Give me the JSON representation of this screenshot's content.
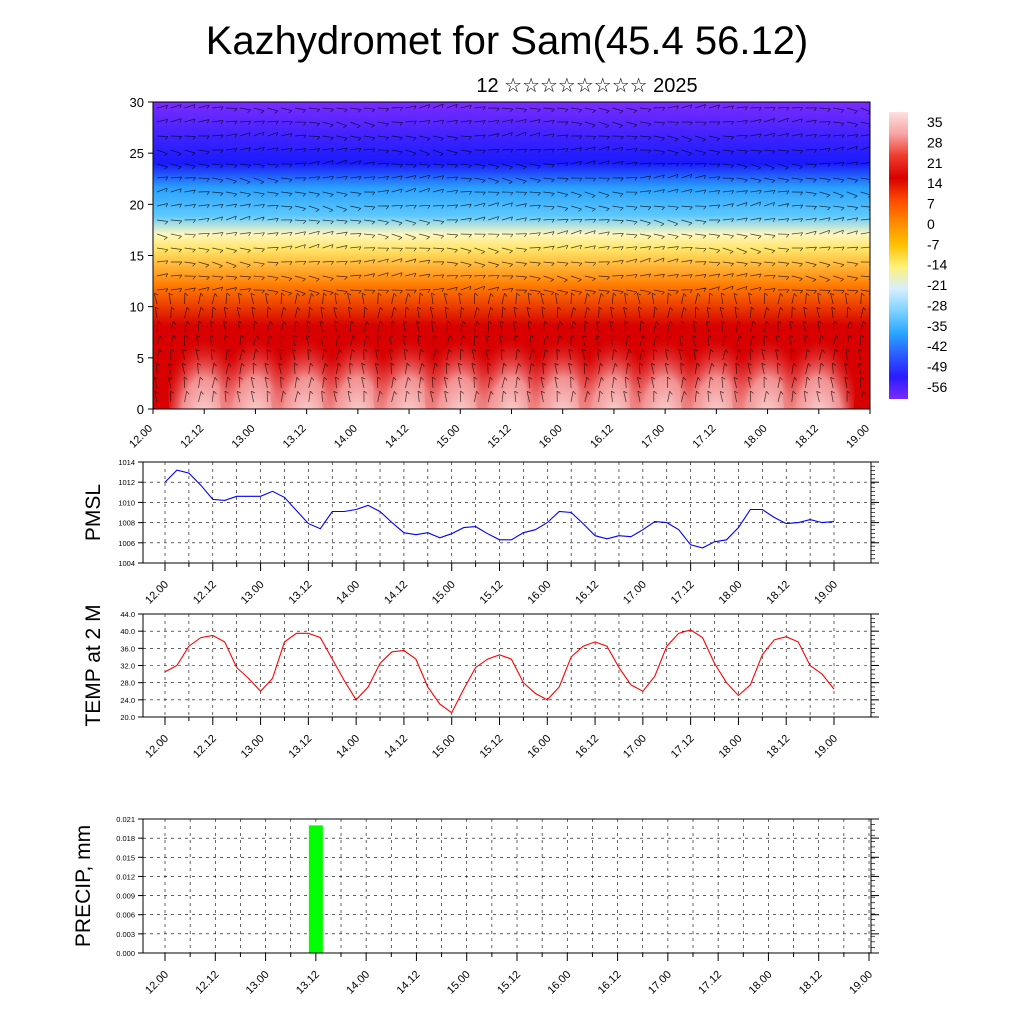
{
  "title": "Kazhydromet for Sam(45.4 56.12)",
  "subtitle": "12 ☆☆☆☆☆☆☆☆ 2025",
  "chart_data": [
    {
      "type": "heatmap",
      "name": "vertical-cross-section",
      "ylabel": "",
      "ylim": [
        0,
        30
      ],
      "yticks": [
        0,
        5,
        10,
        15,
        20,
        25,
        30
      ],
      "x_tick_labels": [
        "12.00",
        "12.12",
        "13.00",
        "13.12",
        "14.00",
        "14.12",
        "15.00",
        "15.12",
        "16.00",
        "16.12",
        "17.00",
        "17.12",
        "18.00",
        "18.12",
        "19.00"
      ],
      "colorbar": {
        "labels": [
          "35",
          "28",
          "21",
          "14",
          "7",
          "0",
          "-7",
          "-14",
          "-21",
          "-28",
          "-35",
          "-42",
          "-49",
          "-56"
        ],
        "colors": [
          "#fde0e0",
          "#f7a3a3",
          "#ee3b2b",
          "#d90000",
          "#ff4a00",
          "#ff8a00",
          "#ffc000",
          "#fff176",
          "#d7efff",
          "#7fd2ff",
          "#2aa7ff",
          "#2b5cff",
          "#2b1cff",
          "#7a2bff"
        ]
      },
      "layer_colors": {
        "low": "#d80000",
        "mid_warm": "#ff7a00",
        "transition": "#ffe566",
        "cool": "#5cc8ff",
        "cold": "#1a1aff",
        "top": "#7b2bff"
      },
      "warm_cores_x": [
        "12.12",
        "13.00",
        "13.12",
        "14.00",
        "14.12",
        "15.00",
        "15.12",
        "16.00",
        "16.12",
        "17.00",
        "17.12",
        "18.00",
        "18.12"
      ]
    },
    {
      "type": "line",
      "name": "pmsl",
      "ylabel": "PMSL",
      "ylim": [
        1004,
        1014
      ],
      "yticks": [
        "1004",
        "1006",
        "1008",
        "1010",
        "1012",
        "1014"
      ],
      "x_tick_labels": [
        "12.00",
        "12.12",
        "13.00",
        "13.12",
        "14.00",
        "14.12",
        "15.00",
        "15.12",
        "16.00",
        "16.12",
        "17.00",
        "17.12",
        "18.00",
        "18.12",
        "19.00"
      ],
      "color": "#0000ff",
      "values": [
        1012.0,
        1013.2,
        1012.9,
        1011.7,
        1010.3,
        1010.2,
        1010.6,
        1010.6,
        1010.6,
        1011.1,
        1010.5,
        1009.2,
        1007.9,
        1007.4,
        1009.1,
        1009.1,
        1009.3,
        1009.7,
        1009.1,
        1008.0,
        1007.0,
        1006.8,
        1007.0,
        1006.5,
        1006.9,
        1007.5,
        1007.6,
        1006.9,
        1006.3,
        1006.3,
        1007.0,
        1007.3,
        1008.0,
        1009.1,
        1009.0,
        1007.9,
        1006.7,
        1006.4,
        1006.7,
        1006.6,
        1007.3,
        1008.1,
        1008.0,
        1007.3,
        1005.8,
        1005.5,
        1006.1,
        1006.3,
        1007.5,
        1009.3,
        1009.3,
        1008.5,
        1007.9,
        1008.0,
        1008.3,
        1008.0,
        1008.1
      ]
    },
    {
      "type": "line",
      "name": "temp-2m",
      "ylabel": "TEMP at 2 M",
      "ylim": [
        20,
        44
      ],
      "yticks": [
        "20.0",
        "24.0",
        "28.0",
        "32.0",
        "36.0",
        "40.0",
        "44.0"
      ],
      "x_tick_labels": [
        "12.00",
        "12.12",
        "13.00",
        "13.12",
        "14.00",
        "14.12",
        "15.00",
        "15.12",
        "16.00",
        "16.12",
        "17.00",
        "17.12",
        "18.00",
        "18.12",
        "19.00"
      ],
      "color": "#ff0000",
      "values": [
        30.5,
        32.0,
        36.5,
        38.5,
        39.0,
        37.5,
        31.5,
        29.0,
        26.0,
        29.0,
        37.5,
        39.5,
        39.5,
        38.5,
        33.5,
        28.5,
        24.0,
        27.0,
        32.5,
        35.2,
        35.5,
        33.5,
        27.0,
        23.0,
        21.0,
        26.5,
        31.5,
        33.5,
        34.5,
        33.5,
        28.0,
        25.5,
        24.0,
        27.0,
        34.0,
        36.5,
        37.5,
        36.5,
        31.5,
        27.5,
        26.0,
        29.5,
        36.5,
        39.5,
        40.3,
        38.5,
        32.5,
        28.0,
        25.0,
        27.5,
        34.5,
        38.0,
        38.7,
        37.5,
        32.0,
        30.0,
        26.5
      ]
    },
    {
      "type": "bar",
      "name": "precip",
      "ylabel": "PRECIP, mm",
      "ylim": [
        0,
        0.021
      ],
      "yticks": [
        "0.000",
        "0.003",
        "0.006",
        "0.009",
        "0.012",
        "0.015",
        "0.018",
        "0.021"
      ],
      "x_tick_labels": [
        "12.00",
        "12.12",
        "13.00",
        "13.12",
        "14.00",
        "14.12",
        "15.00",
        "15.12",
        "16.00",
        "16.12",
        "17.00",
        "17.12",
        "18.00",
        "18.12",
        "19.00"
      ],
      "color": "#00ff00",
      "bars": [
        {
          "x": "13.12",
          "value": 0.02
        }
      ]
    }
  ]
}
